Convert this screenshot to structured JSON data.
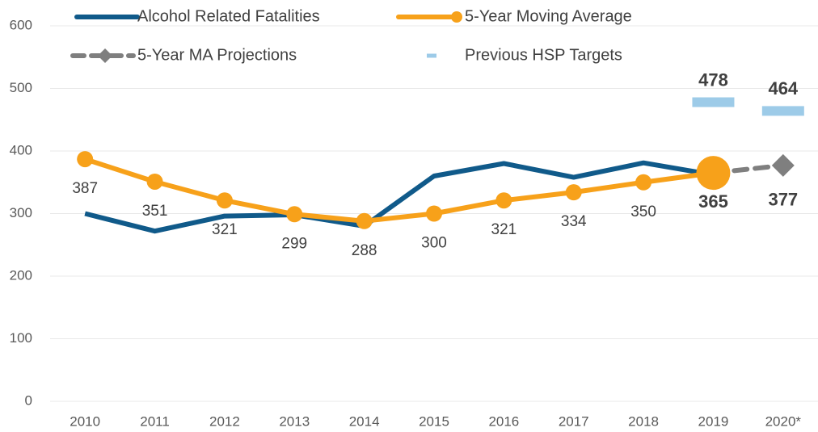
{
  "chart_data": {
    "type": "line",
    "categories": [
      "2010",
      "2011",
      "2012",
      "2013",
      "2014",
      "2015",
      "2016",
      "2017",
      "2018",
      "2019",
      "2020*"
    ],
    "series": [
      {
        "name": "Alcohol Related Fatalities",
        "color": "#105a8a",
        "marker": "none",
        "values": [
          300,
          272,
          296,
          298,
          280,
          360,
          380,
          358,
          381,
          362,
          null
        ]
      },
      {
        "name": "5-Year MA Projections",
        "color": "#7f7f7f",
        "marker": "diamond",
        "dashed": true,
        "values": [
          null,
          null,
          null,
          null,
          null,
          null,
          null,
          null,
          null,
          365,
          377
        ]
      },
      {
        "name": "5-Year Moving Average",
        "color": "#f7a11a",
        "marker": "circle",
        "values": [
          387,
          351,
          321,
          299,
          288,
          300,
          321,
          334,
          350,
          365,
          null
        ]
      },
      {
        "name": "Previous HSP Targets",
        "color": "#9dcbe8",
        "marker": "dash",
        "values": [
          null,
          null,
          null,
          null,
          null,
          null,
          null,
          null,
          null,
          478,
          464
        ]
      }
    ],
    "ylim": [
      0,
      600
    ],
    "yticks": [
      0,
      100,
      200,
      300,
      400,
      500,
      600
    ],
    "grid": true,
    "legend": "top"
  }
}
